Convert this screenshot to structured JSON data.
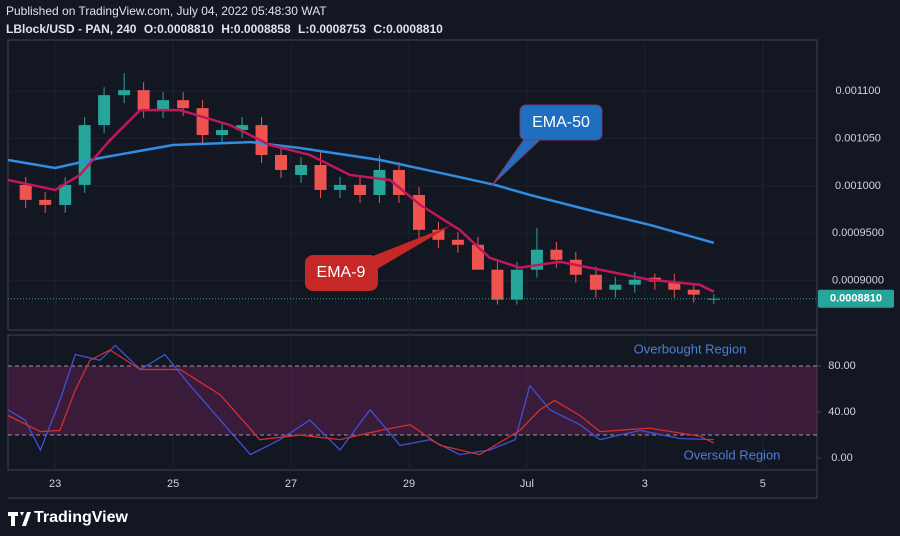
{
  "header": {
    "published": "Published on TradingView.com, July 04, 2022 05:48:30 WAT",
    "symbol": "LBlock/USD - PAN, 240",
    "ohlc": [
      {
        "key": "O:",
        "value": "0.0008810"
      },
      {
        "key": "H:",
        "value": "0.0008858"
      },
      {
        "key": "L:",
        "value": "0.0008753"
      },
      {
        "key": "C:",
        "value": "0.0008810"
      }
    ]
  },
  "footer": {
    "brand": "TradingView"
  },
  "chart_data": [
    {
      "type": "candlestick",
      "ylim": [
        0.000848,
        0.001154
      ],
      "yticks": [
        {
          "value": 0.0011,
          "label": "0.001100"
        },
        {
          "value": 0.00105,
          "label": "0.001050"
        },
        {
          "value": 0.001,
          "label": "0.001000"
        },
        {
          "value": 0.00095,
          "label": "0.0009500"
        },
        {
          "value": 0.0009,
          "label": "0.0009000"
        }
      ],
      "grid": true,
      "up_color": "#26a69a",
      "down_color": "#ef5350",
      "x": [
        22.5,
        22.83,
        23.17,
        23.5,
        23.83,
        24.17,
        24.5,
        24.83,
        25.17,
        25.5,
        25.83,
        26.17,
        26.5,
        26.83,
        27.17,
        27.5,
        27.83,
        28.17,
        28.5,
        28.83,
        29.17,
        29.5,
        29.83,
        30.17,
        30.5,
        30.83,
        31.17,
        31.5,
        31.83,
        32.17,
        32.5,
        32.83,
        33.17,
        33.5,
        33.83,
        34.17
      ],
      "open": [
        0.0010011,
        0.0009853,
        0.00098,
        0.0010011,
        0.0010642,
        0.0010958,
        0.0011011,
        0.00108,
        0.0010905,
        0.0010821,
        0.0010537,
        0.001059,
        0.0010642,
        0.0010327,
        0.0010116,
        0.0010221,
        0.0009958,
        0.0010011,
        0.0009905,
        0.0010169,
        0.0009905,
        0.0009537,
        0.0009432,
        0.0009379,
        0.0009116,
        0.00088,
        0.0009116,
        0.0009327,
        0.0009221,
        0.0009063,
        0.0008905,
        0.0008958,
        0.0009032,
        0.000899,
        0.0008905,
        0.000881
      ],
      "high": [
        0.0010095,
        0.0009937,
        0.0010095,
        0.0010727,
        0.0011042,
        0.001119,
        0.0011095,
        0.001099,
        0.001099,
        0.0010905,
        0.0010674,
        0.0010727,
        0.0010727,
        0.0010411,
        0.0010305,
        0.0010379,
        0.0010095,
        0.0010095,
        0.0010327,
        0.0010253,
        0.000999,
        0.0009621,
        0.0009516,
        0.0009463,
        0.00092,
        0.00092,
        0.0009558,
        0.0009411,
        0.0009305,
        0.0009148,
        0.0009042,
        0.0009095,
        0.0009074,
        0.0009074,
        0.0008979,
        0.0008858
      ],
      "low": [
        0.0009769,
        0.0009716,
        0.0009716,
        0.0009926,
        0.0010558,
        0.0010874,
        0.0010716,
        0.0010716,
        0.0010737,
        0.0010453,
        0.0010453,
        0.0010505,
        0.0010242,
        0.0010084,
        0.0010032,
        0.0009874,
        0.0009874,
        0.0009821,
        0.0009821,
        0.0009821,
        0.0009453,
        0.0009348,
        0.0009295,
        0.0009137,
        0.0008748,
        0.0008748,
        0.0009032,
        0.0009137,
        0.0008979,
        0.0008821,
        0.0008821,
        0.0008874,
        0.0008905,
        0.0008821,
        0.0008769,
        0.0008753
      ],
      "close": [
        0.0009853,
        0.00098,
        0.0010011,
        0.0010642,
        0.0010958,
        0.0011011,
        0.00108,
        0.0010905,
        0.0010821,
        0.0010537,
        0.001059,
        0.0010642,
        0.0010327,
        0.0010169,
        0.0010221,
        0.0009958,
        0.0010011,
        0.0009905,
        0.0010169,
        0.0009905,
        0.0009537,
        0.0009432,
        0.0009379,
        0.0009116,
        0.00088,
        0.0009116,
        0.0009327,
        0.0009221,
        0.0009063,
        0.0008905,
        0.0008958,
        0.0009011,
        0.000899,
        0.0008905,
        0.0008853,
        0.000881
      ],
      "series": [
        {
          "name": "EMA-50",
          "color": "#2f8de4",
          "x": [
            22.2,
            23,
            23.76,
            25,
            26.31,
            27.15,
            28.51,
            29.69,
            30.46,
            31.05,
            32.24,
            33.08,
            34.17
          ],
          "values": [
            0.0010274,
            0.001019,
            0.0010295,
            0.0010432,
            0.0010463,
            0.00104,
            0.0010274,
            0.0010116,
            0.0010011,
            0.0009905,
            0.0009716,
            0.000959,
            0.00094
          ]
        },
        {
          "name": "EMA-9",
          "color": "#c2185b",
          "x": [
            22.2,
            23,
            23.42,
            23.93,
            24.44,
            25.12,
            25.97,
            26.64,
            27.32,
            28.0,
            28.68,
            29.19,
            29.86,
            30.37,
            30.88,
            31.56,
            32.24,
            33.08,
            33.93,
            34.17
          ],
          "values": [
            0.0010063,
            0.0009958,
            0.0010116,
            0.0010484,
            0.00108,
            0.00108,
            0.0010642,
            0.0010432,
            0.0010327,
            0.0010116,
            0.0010063,
            0.00098,
            0.0009537,
            0.0009242,
            0.0009137,
            0.00092,
            0.0009116,
            0.0009011,
            0.0008958,
            0.0008884
          ]
        }
      ],
      "last_price": {
        "value": 0.000881,
        "label": "0.0008810"
      },
      "last_price_color": "#26a69a"
    },
    {
      "type": "line",
      "xlim": [
        22.2,
        35.92
      ],
      "xticks": [
        23,
        25,
        27,
        29,
        {
          "value": 31,
          "label": "Jul"
        },
        {
          "value": 33,
          "label": "3"
        },
        {
          "value": 35,
          "label": "5"
        }
      ],
      "ylim": [
        -10.4,
        107
      ],
      "yticks": [
        {
          "value": 80,
          "label": "80.00"
        },
        {
          "value": 40,
          "label": "40.00"
        },
        {
          "value": 0,
          "label": "0.00"
        }
      ],
      "band": [
        20,
        80
      ],
      "band_color": "#5b1f4f",
      "series": [
        {
          "color": "#3f51d5",
          "x": [
            22.2,
            22.49,
            22.75,
            23.08,
            23.34,
            23.76,
            24.02,
            24.44,
            24.86,
            25.29,
            25.8,
            26.31,
            26.81,
            27.32,
            27.83,
            28.34,
            28.85,
            29.36,
            29.86,
            30.37,
            30.8,
            31.05,
            31.39,
            31.9,
            32.24,
            32.92,
            33.59,
            34.17
          ],
          "values": [
            42,
            33,
            7,
            50,
            90,
            85,
            98,
            77,
            90,
            63,
            33,
            3,
            16,
            33,
            7,
            42,
            11,
            16,
            3,
            7,
            16,
            63,
            42,
            29,
            16,
            24,
            17,
            16
          ]
        },
        {
          "color": "#d32f2f",
          "x": [
            22.2,
            22.75,
            23.08,
            23.34,
            23.59,
            23.93,
            24.44,
            25.12,
            25.8,
            26.47,
            27.15,
            27.83,
            28.51,
            29.02,
            29.53,
            30.2,
            30.88,
            31.22,
            31.47,
            31.9,
            32.24,
            33.08,
            33.93,
            34.17
          ],
          "values": [
            37,
            23,
            24,
            59,
            85,
            94,
            77,
            77,
            55,
            16,
            20,
            16,
            24,
            29,
            11,
            3,
            24,
            42,
            50,
            37,
            23,
            26,
            19,
            13
          ]
        }
      ],
      "annotations": [
        "Overbought Region",
        "Oversold Region"
      ]
    }
  ]
}
